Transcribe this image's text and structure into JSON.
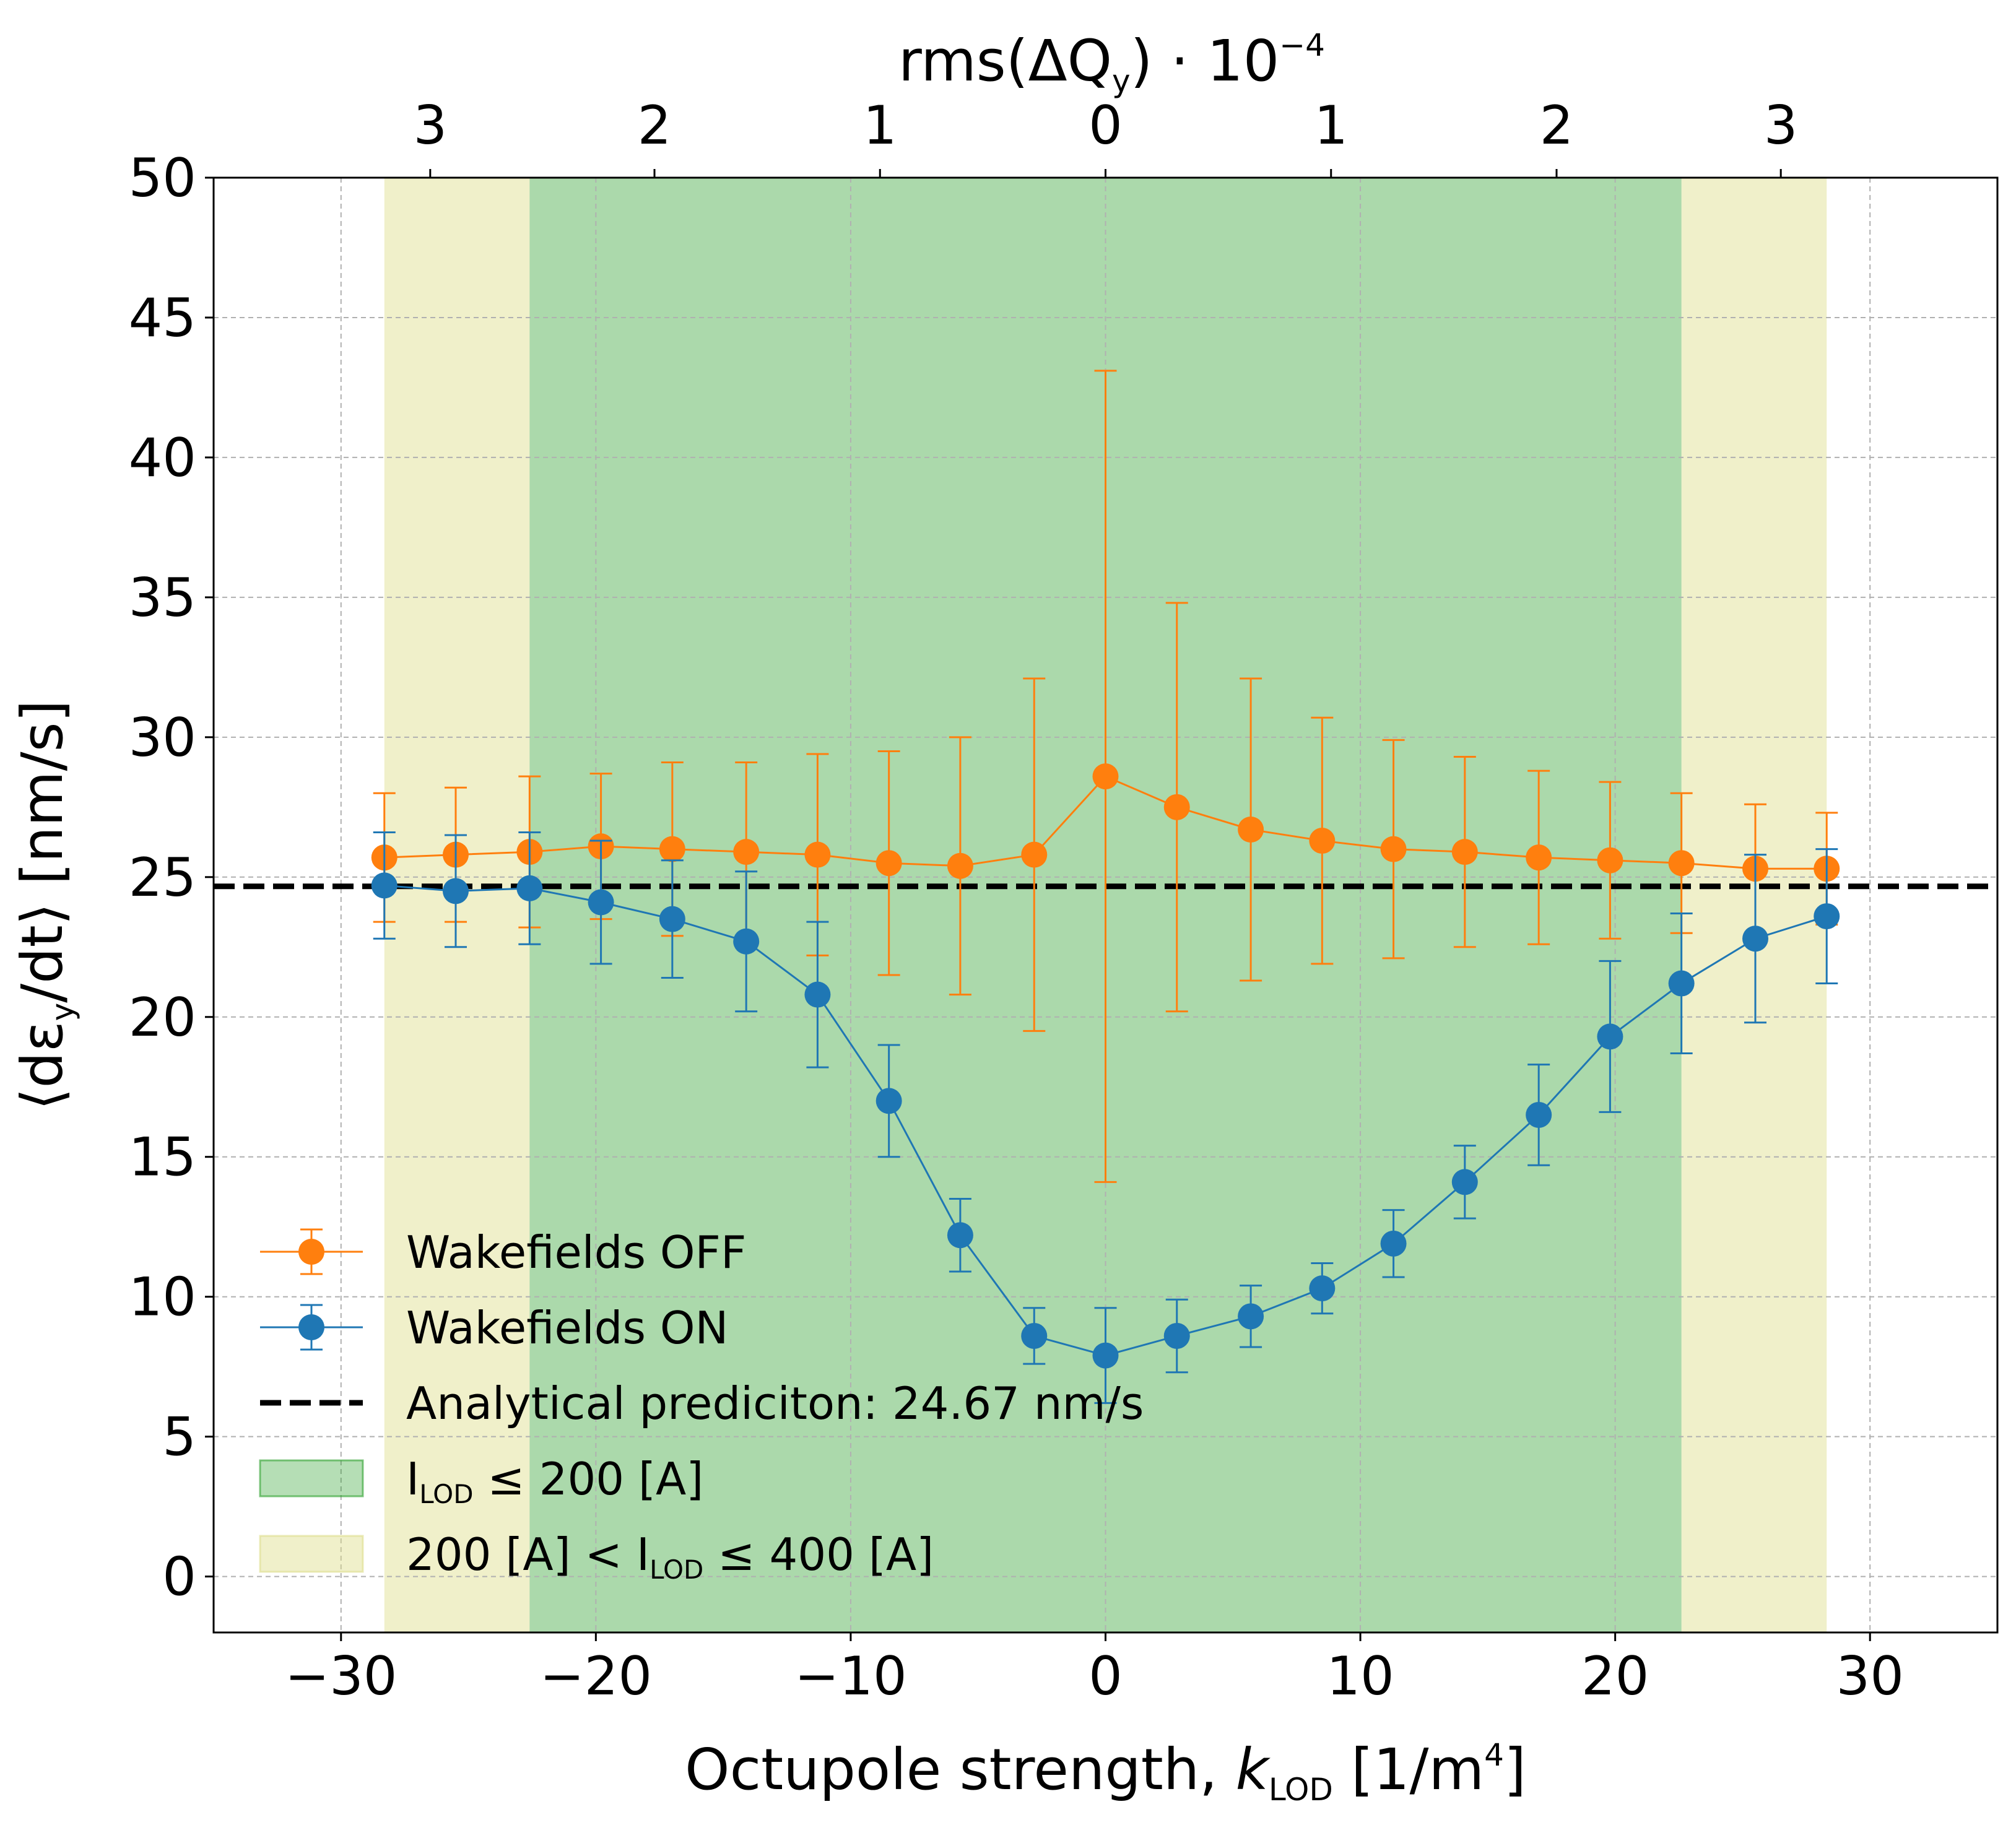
{
  "chart_data": {
    "type": "line",
    "xlabel": {
      "main": "Octupole strength, ",
      "k": "k",
      "sub": "LOD",
      "unit": " [1/m",
      "sup": "4",
      "close": "]"
    },
    "ylabel": {
      "open": "⟨dε",
      "sub": "y",
      "rest": "/dt⟩ [nm/s]"
    },
    "top_xlabel": {
      "main": "rms(ΔQ",
      "sub": "y",
      "mid": ") · 10",
      "sup": "−4"
    },
    "xlim": [
      -35,
      35
    ],
    "ylim": [
      -2,
      50
    ],
    "x_ticks": [
      -30,
      -20,
      -10,
      0,
      10,
      20,
      30
    ],
    "x_tick_labels": [
      "−30",
      "−20",
      "−10",
      "0",
      "10",
      "20",
      "30"
    ],
    "y_ticks": [
      0,
      5,
      10,
      15,
      20,
      25,
      30,
      35,
      40,
      45,
      50
    ],
    "y_tick_labels": [
      "0",
      "5",
      "10",
      "15",
      "20",
      "25",
      "30",
      "35",
      "40",
      "45",
      "50"
    ],
    "top_ticks": [
      {
        "x": -26.5,
        "label": "3"
      },
      {
        "x": -17.7,
        "label": "2"
      },
      {
        "x": -8.85,
        "label": "1"
      },
      {
        "x": 0,
        "label": "0"
      },
      {
        "x": 8.85,
        "label": "1"
      },
      {
        "x": 17.7,
        "label": "2"
      },
      {
        "x": 26.5,
        "label": "3"
      }
    ],
    "grid": true,
    "legend_position": "lower-left",
    "bands": [
      {
        "name": "yellow",
        "ranges": [
          [
            -28.3,
            -22.6
          ],
          [
            22.6,
            28.3
          ]
        ],
        "color": "#dede8a",
        "opacity": 0.45
      },
      {
        "name": "green",
        "ranges": [
          [
            -22.6,
            22.6
          ]
        ],
        "color": "#2ca02c",
        "opacity": 0.4
      }
    ],
    "hline": {
      "y": 24.67,
      "color": "#000000"
    },
    "series": [
      {
        "name": "Wakefields OFF",
        "color": "#ff7f0e",
        "x": [
          -28.3,
          -25.5,
          -22.6,
          -19.8,
          -17.0,
          -14.1,
          -11.3,
          -8.5,
          -5.7,
          -2.8,
          0,
          2.8,
          5.7,
          8.5,
          11.3,
          14.1,
          17.0,
          19.8,
          22.6,
          25.5,
          28.3
        ],
        "y": [
          25.7,
          25.8,
          25.9,
          26.1,
          26.0,
          25.9,
          25.8,
          25.5,
          25.4,
          25.8,
          28.6,
          27.5,
          26.7,
          26.3,
          26.0,
          25.9,
          25.7,
          25.6,
          25.5,
          25.3,
          25.3
        ],
        "err": [
          2.3,
          2.4,
          2.7,
          2.6,
          3.1,
          3.2,
          3.6,
          4.0,
          4.6,
          6.3,
          14.5,
          7.3,
          5.4,
          4.4,
          3.9,
          3.4,
          3.1,
          2.8,
          2.5,
          2.3,
          2.0
        ]
      },
      {
        "name": "Wakefields ON",
        "color": "#1f77b4",
        "x": [
          -28.3,
          -25.5,
          -22.6,
          -19.8,
          -17.0,
          -14.1,
          -11.3,
          -8.5,
          -5.7,
          -2.8,
          0,
          2.8,
          5.7,
          8.5,
          11.3,
          14.1,
          17.0,
          19.8,
          22.6,
          25.5,
          28.3
        ],
        "y": [
          24.7,
          24.5,
          24.6,
          24.1,
          23.5,
          22.7,
          20.8,
          17.0,
          12.2,
          8.6,
          7.9,
          8.6,
          9.3,
          10.3,
          11.9,
          14.1,
          16.5,
          19.3,
          21.2,
          22.8,
          23.6
        ],
        "err": [
          1.9,
          2.0,
          2.0,
          2.2,
          2.1,
          2.5,
          2.6,
          2.0,
          1.3,
          1.0,
          1.7,
          1.3,
          1.1,
          0.9,
          1.2,
          1.3,
          1.8,
          2.7,
          2.5,
          3.0,
          2.4
        ]
      }
    ],
    "legend": [
      {
        "kind": "errorline",
        "color": "#ff7f0e",
        "text": "Wakefields OFF"
      },
      {
        "kind": "errorline",
        "color": "#1f77b4",
        "text": "Wakefields ON"
      },
      {
        "kind": "dash",
        "color": "#000000",
        "text": "Analytical prediciton: 24.67 nm/s"
      },
      {
        "kind": "patch",
        "color": "#2ca02c",
        "text_parts": [
          "I",
          "LOD",
          " ≤ 200 [A]"
        ]
      },
      {
        "kind": "patch",
        "color": "#dede8a",
        "text_parts": [
          "200 [A] < I",
          "LOD",
          " ≤ 400 [A]"
        ]
      }
    ]
  }
}
